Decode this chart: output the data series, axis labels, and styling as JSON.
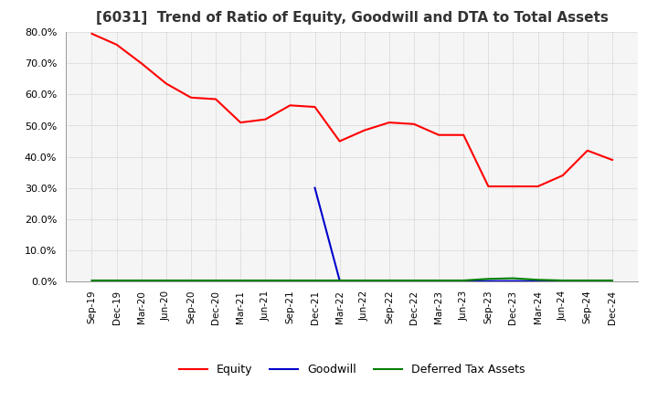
{
  "title": "[6031]  Trend of Ratio of Equity, Goodwill and DTA to Total Assets",
  "x_labels": [
    "Sep-19",
    "Dec-19",
    "Mar-20",
    "Jun-20",
    "Sep-20",
    "Dec-20",
    "Mar-21",
    "Jun-21",
    "Sep-21",
    "Dec-21",
    "Mar-22",
    "Jun-22",
    "Sep-22",
    "Dec-22",
    "Mar-23",
    "Jun-23",
    "Sep-23",
    "Dec-23",
    "Mar-24",
    "Jun-24",
    "Sep-24",
    "Dec-24"
  ],
  "equity": [
    79.5,
    76.0,
    70.0,
    63.5,
    59.0,
    58.5,
    51.0,
    52.0,
    56.5,
    56.0,
    45.0,
    48.5,
    51.0,
    50.5,
    47.0,
    47.0,
    30.5,
    30.5,
    30.5,
    34.0,
    42.0,
    39.0
  ],
  "goodwill": [
    null,
    null,
    null,
    null,
    null,
    null,
    null,
    null,
    null,
    30.0,
    0.3,
    0.1,
    0.1,
    0.1,
    0.1,
    0.1,
    0.1,
    0.1,
    0.1,
    0.1,
    0.1,
    0.1
  ],
  "dta": [
    0.3,
    0.3,
    0.3,
    0.3,
    0.3,
    0.3,
    0.3,
    0.3,
    0.3,
    0.3,
    0.3,
    0.3,
    0.3,
    0.3,
    0.3,
    0.3,
    0.8,
    1.0,
    0.5,
    0.3,
    0.3,
    0.3
  ],
  "equity_color": "#ff0000",
  "goodwill_color": "#0000cc",
  "dta_color": "#008000",
  "ylim": [
    0.0,
    80.0
  ],
  "yticks": [
    0.0,
    10.0,
    20.0,
    30.0,
    40.0,
    50.0,
    60.0,
    70.0,
    80.0
  ],
  "background_color": "#ffffff",
  "plot_bg_color": "#f5f5f5",
  "grid_color": "#aaaaaa",
  "title_fontsize": 11,
  "legend_fontsize": 9
}
